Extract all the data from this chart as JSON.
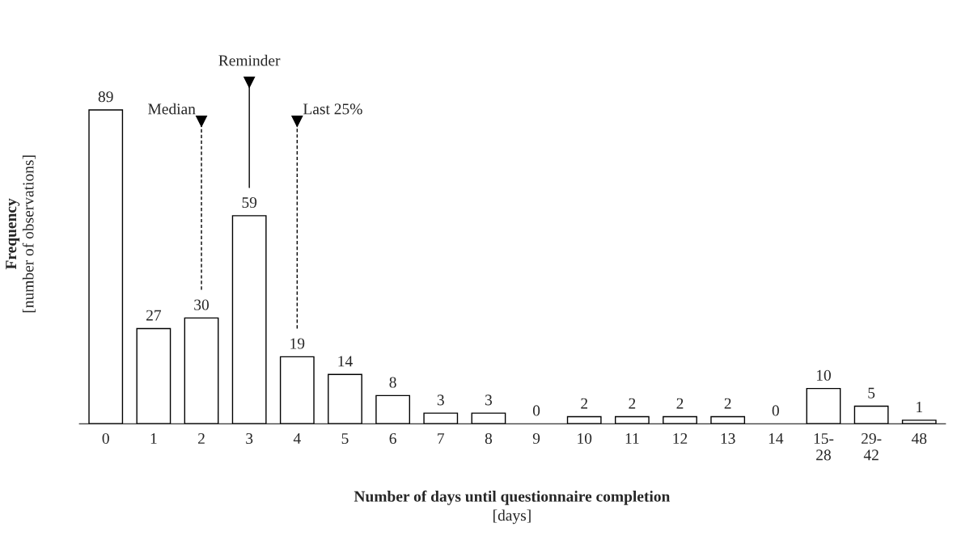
{
  "chart_data": {
    "type": "bar",
    "categories": [
      "0",
      "1",
      "2",
      "3",
      "4",
      "5",
      "6",
      "7",
      "8",
      "9",
      "10",
      "11",
      "12",
      "13",
      "14",
      "15-\n28",
      "29-\n42",
      "48"
    ],
    "values": [
      89,
      27,
      30,
      59,
      19,
      14,
      8,
      3,
      3,
      0,
      2,
      2,
      2,
      2,
      0,
      10,
      5,
      1
    ],
    "color": "#ffffff",
    "data_labels": true,
    "xlabel": "Number of days until questionnaire completion\n[days]",
    "ylabel": "Frequency\n[number of observations]",
    "ref_lines": [
      {
        "axis": "x",
        "value": "2",
        "label": "Median",
        "line_style": "dashed"
      },
      {
        "axis": "x",
        "value": "3",
        "label": "Reminder",
        "line_style": "solid"
      },
      {
        "axis": "x",
        "value": "4",
        "label": "Last 25%",
        "line_style": "dashed"
      }
    ],
    "grid": false
  }
}
